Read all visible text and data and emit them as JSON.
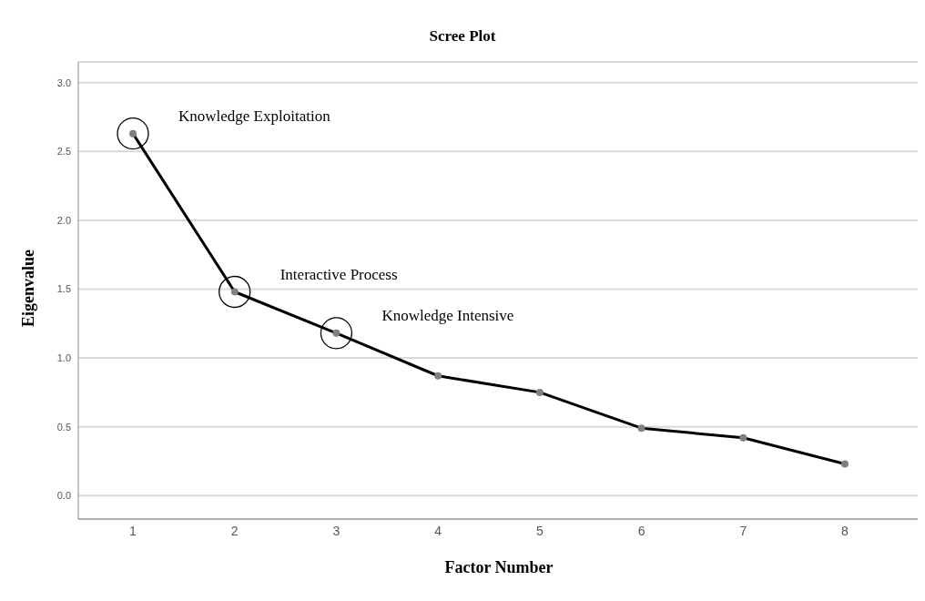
{
  "chart_data": {
    "type": "line",
    "title": "Scree Plot",
    "xlabel": "Factor Number",
    "ylabel": "Eigenvalue",
    "categories": [
      "1",
      "2",
      "3",
      "4",
      "5",
      "6",
      "7",
      "8"
    ],
    "series": [
      {
        "color": "#000000",
        "values": [
          2.63,
          1.48,
          1.18,
          0.87,
          0.75,
          0.49,
          0.42,
          0.23
        ]
      }
    ],
    "ylim": [
      -0.17,
      3.15
    ],
    "yticks": [
      {
        "value": 0,
        "label": "0.0"
      },
      {
        "value": 0.5,
        "label": "0.5"
      },
      {
        "value": 1,
        "label": "1.0"
      },
      {
        "value": 1.5,
        "label": "1.5"
      },
      {
        "value": 2,
        "label": "2.0"
      },
      {
        "value": 2.5,
        "label": "2.5"
      },
      {
        "value": 3,
        "label": "3.0"
      }
    ],
    "grid": "y",
    "marker": "circle",
    "line_style": "solid",
    "legend": false,
    "annotations": [
      {
        "text": "Knowledge Exploitation",
        "x": "1",
        "y": 2.63
      },
      {
        "text": "Interactive Process",
        "x": "2",
        "y": 1.48
      },
      {
        "text": "Knowledge Intensive",
        "x": "3",
        "y": 1.18
      }
    ]
  }
}
